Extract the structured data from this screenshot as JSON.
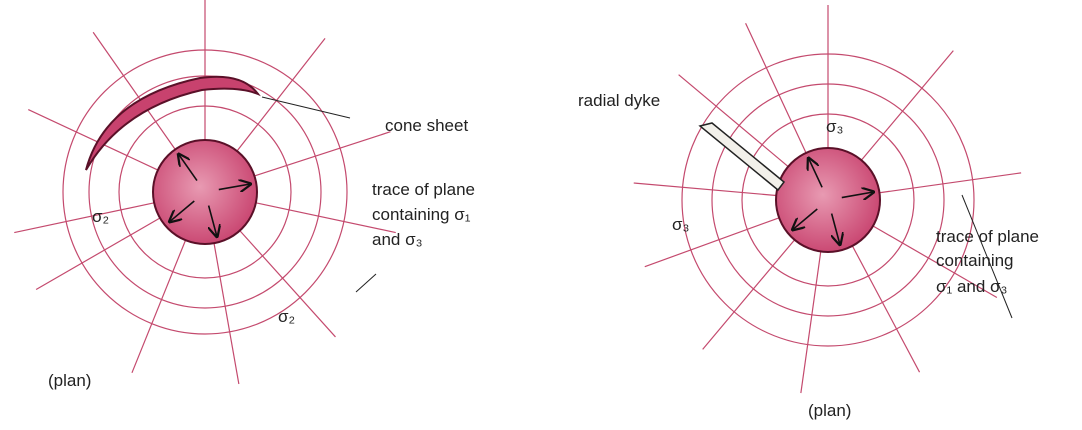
{
  "left": {
    "cone_sheet": "cone sheet",
    "trace_label": [
      "trace of plane",
      "containing σ₁",
      "and σ₃"
    ],
    "sigma_labels": [
      "σ₂",
      "σ₂"
    ],
    "plan": "(plan)"
  },
  "right": {
    "radial_dyke": "radial dyke",
    "trace_label": [
      "trace of plane",
      "containing",
      "σ₁ and σ₃"
    ],
    "sigma_labels": [
      "σ₃",
      "σ₃"
    ],
    "plan": "(plan)"
  }
}
